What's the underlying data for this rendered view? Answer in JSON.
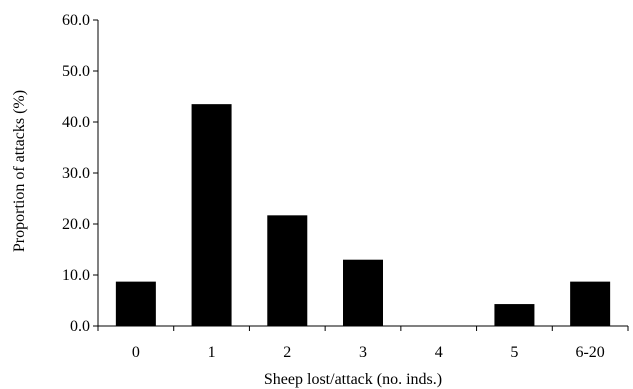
{
  "chart_data": {
    "type": "bar",
    "title": "",
    "xlabel": "Sheep lost/attack (no. inds.)",
    "ylabel": "Proportion of attacks (%)",
    "categories": [
      "0",
      "1",
      "2",
      "3",
      "4",
      "5",
      "6-20"
    ],
    "values": [
      8.7,
      43.5,
      21.7,
      13.0,
      0.0,
      4.3,
      8.7
    ],
    "ylim": [
      0,
      60
    ],
    "yticks": [
      "0.0",
      "10.0",
      "20.0",
      "30.0",
      "40.0",
      "50.0",
      "60.0"
    ],
    "grid": false,
    "bar_color": "#000000"
  }
}
